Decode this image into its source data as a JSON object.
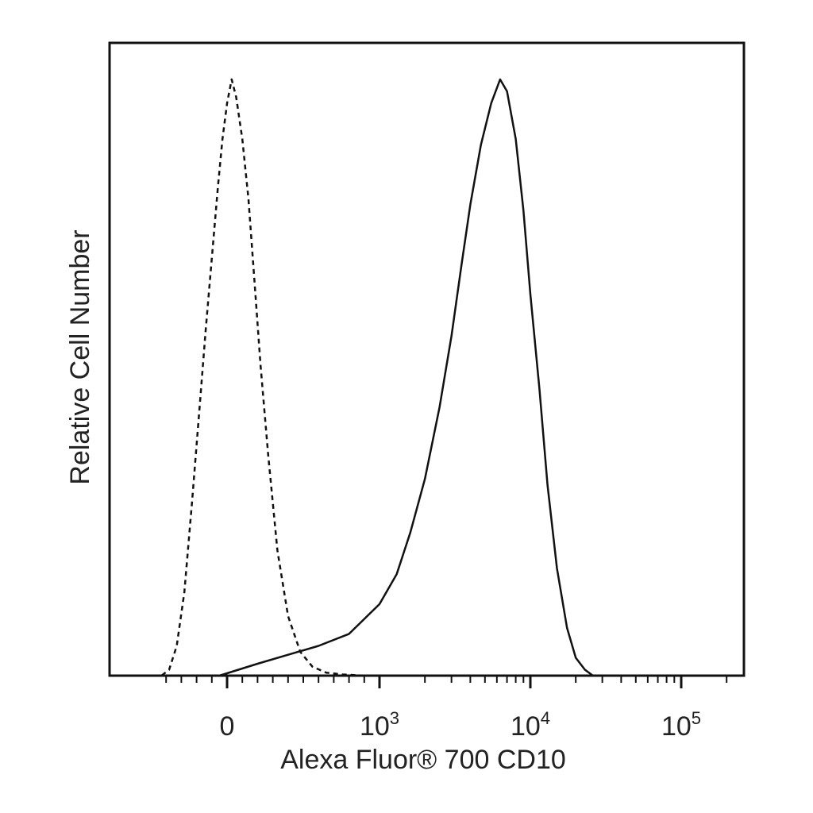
{
  "chart_data": {
    "type": "histogram",
    "title": "",
    "xlabel": "Alexa Fluor® 700 CD10",
    "ylabel": "Relative Cell Number",
    "x_scale": "biexponential",
    "xlim": [
      -500,
      200000
    ],
    "ylim": [
      0,
      1
    ],
    "grid": false,
    "legend": "none",
    "x_ticks": [
      {
        "value": 0,
        "base": "0",
        "exp": ""
      },
      {
        "value": 1000,
        "base": "10",
        "exp": "3"
      },
      {
        "value": 10000,
        "base": "10",
        "exp": "4"
      },
      {
        "value": 100000,
        "base": "10",
        "exp": "5"
      }
    ],
    "series": [
      {
        "style": "dashed",
        "color": "#111111",
        "x": [
          -430,
          -380,
          -330,
          -280,
          -230,
          -180,
          -140,
          -100,
          -60,
          -30,
          0,
          30,
          60,
          100,
          140,
          180,
          220,
          270,
          330,
          400,
          480,
          560,
          650,
          760,
          900
        ],
        "y": [
          0.0,
          0.01,
          0.05,
          0.14,
          0.29,
          0.45,
          0.58,
          0.7,
          0.82,
          0.9,
          0.96,
          1.0,
          0.97,
          0.9,
          0.8,
          0.66,
          0.52,
          0.37,
          0.21,
          0.1,
          0.04,
          0.015,
          0.005,
          0.002,
          0.0
        ]
      },
      {
        "style": "solid",
        "color": "#111111",
        "x": [
          -50,
          200,
          400,
          600,
          800,
          1000,
          1300,
          1600,
          2000,
          2500,
          3000,
          3500,
          4000,
          4700,
          5500,
          6300,
          7000,
          8000,
          9000,
          10000,
          11500,
          13000,
          15000,
          17500,
          20000,
          23000,
          26000
        ],
        "y": [
          0.0,
          0.02,
          0.035,
          0.05,
          0.07,
          0.12,
          0.17,
          0.24,
          0.33,
          0.45,
          0.57,
          0.69,
          0.79,
          0.89,
          0.96,
          1.0,
          0.98,
          0.9,
          0.78,
          0.64,
          0.48,
          0.32,
          0.18,
          0.08,
          0.03,
          0.01,
          0.0
        ]
      }
    ]
  }
}
